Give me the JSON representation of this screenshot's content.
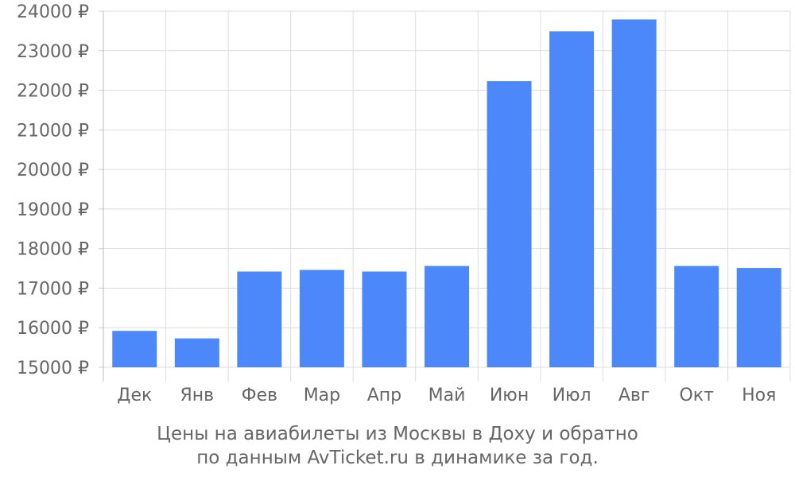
{
  "chart_data": {
    "type": "bar",
    "categories": [
      "Дек",
      "Янв",
      "Фев",
      "Мар",
      "Апр",
      "Май",
      "Июн",
      "Июл",
      "Авг",
      "Окт",
      "Ноя"
    ],
    "values": [
      15920,
      15730,
      17420,
      17460,
      17420,
      17560,
      22230,
      23490,
      23790,
      17560,
      17510
    ],
    "ylim": [
      15000,
      24000
    ],
    "yticks": [
      15000,
      16000,
      17000,
      18000,
      19000,
      20000,
      21000,
      22000,
      23000,
      24000
    ],
    "ytick_suffix": " ₽",
    "caption_line1": "Цены на авиабилеты из Москвы в Доху и обратно",
    "caption_line2": "по данным AvTicket.ru в динамике за год.",
    "grid": true,
    "bar_color": "#4d88fa"
  }
}
